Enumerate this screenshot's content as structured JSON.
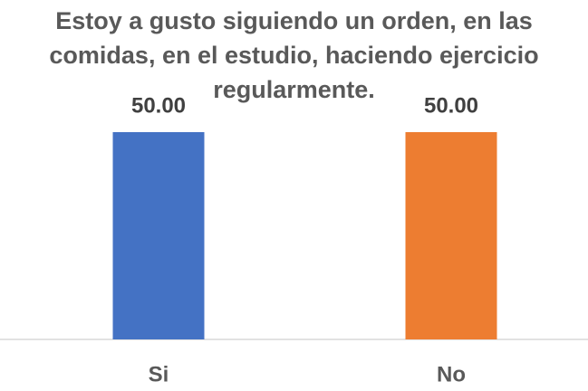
{
  "chart_data": {
    "type": "bar",
    "title": "Estoy a gusto siguiendo un orden, en las comidas, en el estudio, haciendo ejercicio regularmente.",
    "categories": [
      "Si",
      "No"
    ],
    "values": [
      50,
      50
    ],
    "value_labels": [
      "50.00",
      "50.00"
    ],
    "colors": [
      "#4472c4",
      "#ed7d31"
    ]
  }
}
